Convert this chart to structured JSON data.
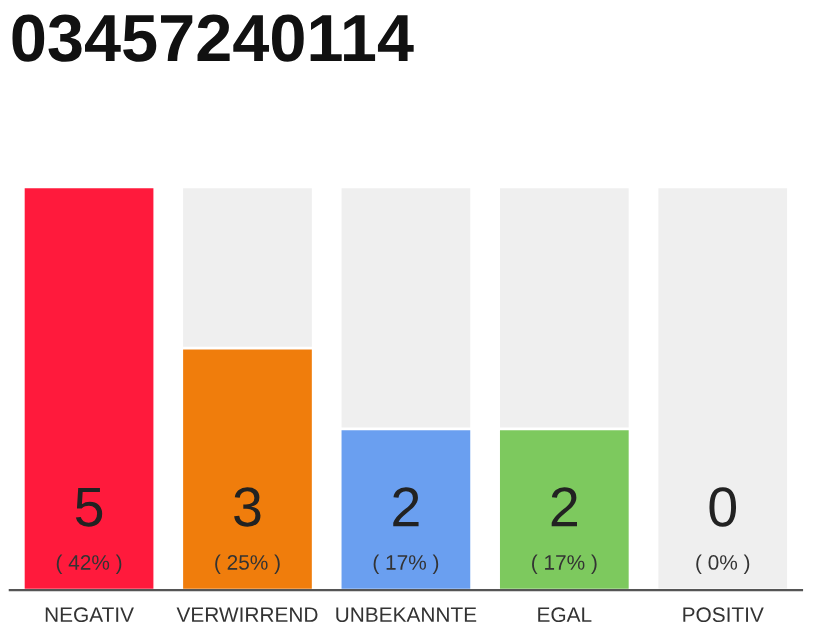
{
  "chart_data": {
    "type": "bar",
    "title": "03457240114",
    "categories": [
      "NEGATIV",
      "VERWIRREND",
      "UNBEKANNTE",
      "EGAL",
      "POSITIV"
    ],
    "values": [
      5,
      3,
      2,
      2,
      0
    ],
    "colors": [
      "#ff1a3c",
      "#f07d0c",
      "#6a9ff0",
      "#7dc95e",
      "#efefef"
    ],
    "value_labels": [
      "5\n( 42% )",
      "3\n( 25% )",
      "2\n( 17% )",
      "2\n( 17% )",
      "0\n( 0% )"
    ],
    "ylim": [
      0,
      5
    ],
    "tick_labels": "x",
    "grid": false,
    "legend": false
  }
}
